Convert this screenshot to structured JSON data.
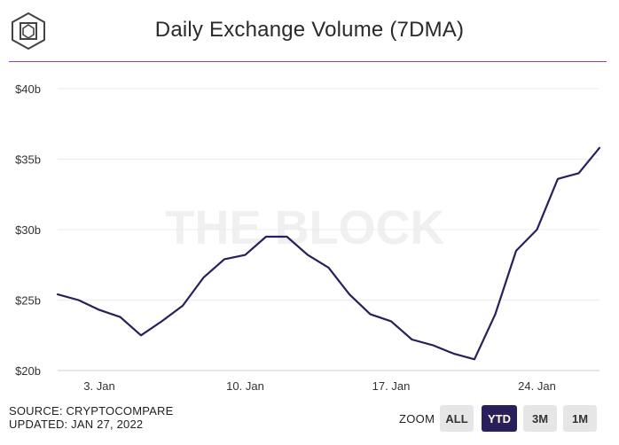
{
  "title": "Daily Exchange Volume (7DMA)",
  "footer": {
    "source": "SOURCE: CRYPTOCOMPARE",
    "updated": "UPDATED: JAN 27, 2022"
  },
  "zoom": {
    "label": "ZOOM",
    "buttons": [
      "ALL",
      "YTD",
      "3M",
      "1M"
    ],
    "active": "YTD"
  },
  "watermark": "THE BLOCK",
  "colors": {
    "line": "#2a1f5a",
    "accent_rule": "#8e44c9",
    "active_button": "#2a1f5a"
  },
  "chart_data": {
    "type": "line",
    "title": "Daily Exchange Volume (7DMA)",
    "x_ticks": [
      "3. Jan",
      "10. Jan",
      "17. Jan",
      "24. Jan"
    ],
    "y_ticks": [
      "$20b",
      "$25b",
      "$30b",
      "$35b",
      "$40b"
    ],
    "ylim": [
      20,
      40
    ],
    "xlim": [
      "2022-01-01",
      "2022-01-27"
    ],
    "grid": true,
    "series": [
      {
        "values": [
          {
            "x": "2022-01-01",
            "y": 25.4
          },
          {
            "x": "2022-01-02",
            "y": 25.0
          },
          {
            "x": "2022-01-03",
            "y": 24.3
          },
          {
            "x": "2022-01-04",
            "y": 23.8
          },
          {
            "x": "2022-01-05",
            "y": 22.5
          },
          {
            "x": "2022-01-06",
            "y": 23.5
          },
          {
            "x": "2022-01-07",
            "y": 24.6
          },
          {
            "x": "2022-01-08",
            "y": 26.6
          },
          {
            "x": "2022-01-09",
            "y": 27.9
          },
          {
            "x": "2022-01-10",
            "y": 28.2
          },
          {
            "x": "2022-01-11",
            "y": 29.5
          },
          {
            "x": "2022-01-12",
            "y": 29.5
          },
          {
            "x": "2022-01-13",
            "y": 28.2
          },
          {
            "x": "2022-01-14",
            "y": 27.3
          },
          {
            "x": "2022-01-15",
            "y": 25.4
          },
          {
            "x": "2022-01-16",
            "y": 24.0
          },
          {
            "x": "2022-01-17",
            "y": 23.5
          },
          {
            "x": "2022-01-18",
            "y": 22.2
          },
          {
            "x": "2022-01-19",
            "y": 21.8
          },
          {
            "x": "2022-01-20",
            "y": 21.2
          },
          {
            "x": "2022-01-21",
            "y": 20.8
          },
          {
            "x": "2022-01-22",
            "y": 24.0
          },
          {
            "x": "2022-01-23",
            "y": 28.5
          },
          {
            "x": "2022-01-24",
            "y": 30.0
          },
          {
            "x": "2022-01-25",
            "y": 33.6
          },
          {
            "x": "2022-01-26",
            "y": 34.0
          },
          {
            "x": "2022-01-27",
            "y": 35.8
          }
        ]
      }
    ]
  }
}
